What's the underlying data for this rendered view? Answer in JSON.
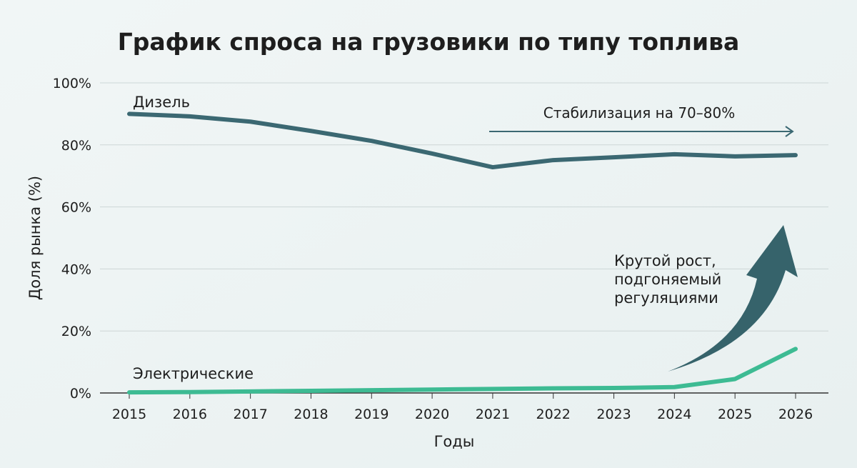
{
  "chart_data": {
    "type": "line",
    "title": "График спроса на грузовики по типу топлива",
    "xlabel": "Годы",
    "ylabel": "Доля рынка (%)",
    "x": [
      2015,
      2016,
      2017,
      2018,
      2019,
      2020,
      2021,
      2022,
      2023,
      2024,
      2025,
      2026
    ],
    "ylim": [
      0,
      100
    ],
    "yticks": [
      "0%",
      "20%",
      "40%",
      "60%",
      "80%",
      "100%"
    ],
    "grid": true,
    "series": [
      {
        "name": "Дизель",
        "color": "#3b6872",
        "values": [
          90,
          89.2,
          87.5,
          84.5,
          81.3,
          77.2,
          72.8,
          75.1,
          76.0,
          77.0,
          76.3,
          76.7
        ]
      },
      {
        "name": "Электрические",
        "color": "#3dbb93",
        "values": [
          0.2,
          0.3,
          0.5,
          0.7,
          0.9,
          1.1,
          1.3,
          1.5,
          1.6,
          1.9,
          4.5,
          14.2
        ]
      }
    ],
    "annotations": [
      {
        "text": "Стабилизация на 70–80%",
        "kind": "horizontal-arrow"
      },
      {
        "lines": [
          "Крутой рост,",
          "подгоняемый",
          "регуляциями"
        ],
        "kind": "curved-up-arrow"
      }
    ]
  }
}
